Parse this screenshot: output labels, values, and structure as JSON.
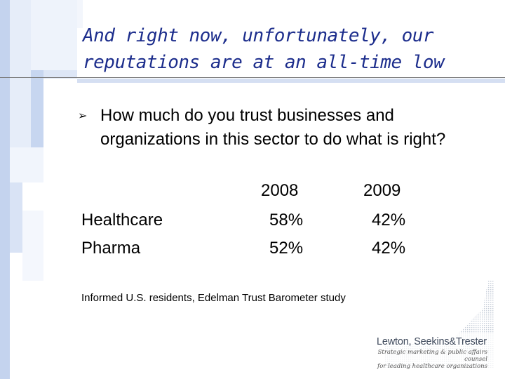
{
  "slide": {
    "title": "And right now, unfortunately, our reputations are at an all-time low",
    "question": "How much do you trust businesses and organizations in this sector to do what is right?",
    "bullet_icon": "arrow-bullet-icon",
    "years": [
      "2008",
      "2009"
    ],
    "rows": [
      {
        "label": "Healthcare",
        "values": [
          "58%",
          "42%"
        ]
      },
      {
        "label": "Pharma",
        "values": [
          "52%",
          "42%"
        ]
      }
    ],
    "source": "Informed U.S. residents, Edelman Trust Barometer study",
    "logo": {
      "name": "Lewton, Seekins&Trester",
      "tagline_1": "Strategic marketing & public affairs counsel",
      "tagline_2": "for leading healthcare organizations"
    },
    "colors": {
      "title": "#1c2d8c",
      "accent": "#c4d3ee"
    }
  }
}
